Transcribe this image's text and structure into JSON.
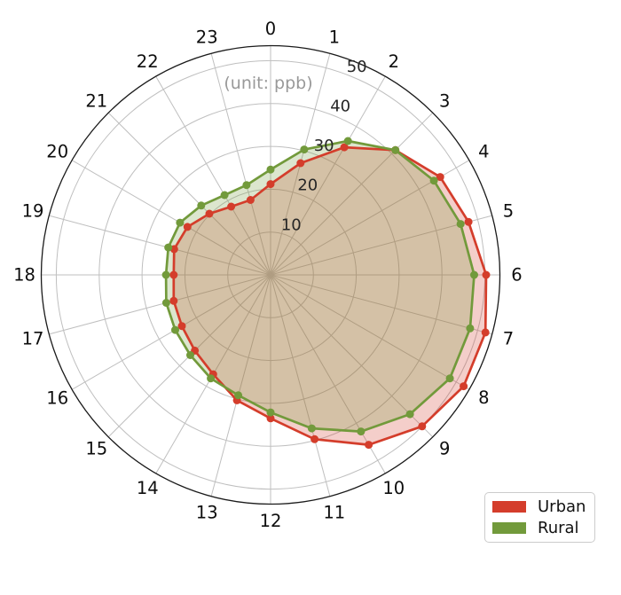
{
  "chart": {
    "unit_annotation": "(unit: ppb)",
    "colors": {
      "urban": "#d43d2b",
      "rural": "#729a3b",
      "grid": "#bfbfbf",
      "outer_ring": "#1a1a1a",
      "tick_text": "#262626",
      "hour_text": "#0d0d0d",
      "unit_text": "#999999",
      "legend_border": "#cccccc"
    },
    "legend": {
      "items": [
        {
          "label": "Urban",
          "color": "#d43d2b"
        },
        {
          "label": "Rural",
          "color": "#729a3b"
        }
      ]
    }
  },
  "chart_data": {
    "type": "radar",
    "angular_axis": "hour of day (24 spokes, clockwise from top)",
    "categories": [
      "0",
      "1",
      "2",
      "3",
      "4",
      "5",
      "6",
      "7",
      "8",
      "9",
      "10",
      "11",
      "12",
      "13",
      "14",
      "15",
      "16",
      "17",
      "18",
      "19",
      "20",
      "21",
      "22",
      "23"
    ],
    "radial_ticks": [
      10,
      20,
      30,
      40,
      50
    ],
    "radial_tick_labels": [
      "10",
      "20",
      "30",
      "40",
      "50"
    ],
    "r_min": 0,
    "r_max": 53.5,
    "annotation": "(unit: ppb)",
    "legend_position": "lower right",
    "grid": true,
    "series": [
      {
        "name": "Urban",
        "color": "#d43d2b",
        "values": [
          21.2,
          27.0,
          34.4,
          41.2,
          45.7,
          47.8,
          50.3,
          51.9,
          52.0,
          50.0,
          45.8,
          39.7,
          33.5,
          30.3,
          26.8,
          25.0,
          23.9,
          23.4,
          22.6,
          23.3,
          22.4,
          20.2,
          18.4,
          18.1
        ]
      },
      {
        "name": "Rural",
        "color": "#729a3b",
        "values": [
          24.6,
          30.3,
          36.1,
          41.2,
          44.0,
          45.9,
          47.5,
          48.2,
          48.3,
          46.0,
          42.2,
          37.1,
          32.1,
          29.1,
          27.9,
          26.5,
          25.7,
          25.2,
          24.4,
          24.7,
          24.4,
          22.9,
          21.5,
          21.7
        ]
      }
    ]
  }
}
